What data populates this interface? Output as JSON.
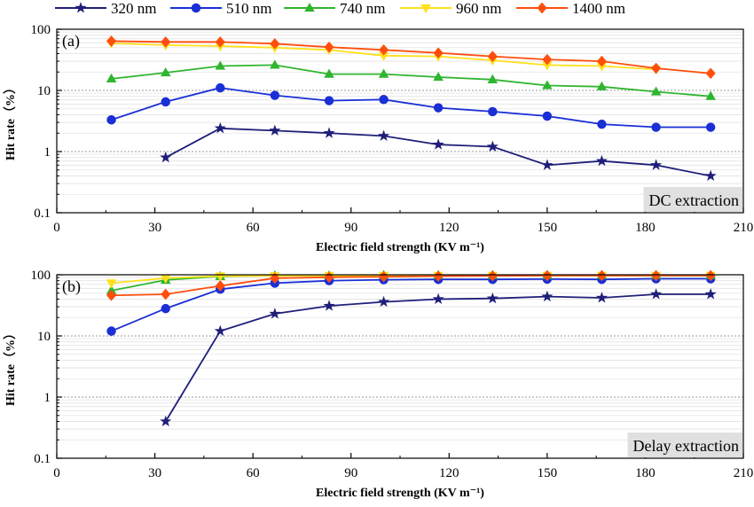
{
  "legend": [
    {
      "label": "320 nm",
      "color": "#1f1f7a",
      "marker": "star"
    },
    {
      "label": "510 nm",
      "color": "#1a2fd6",
      "marker": "circle"
    },
    {
      "label": "740 nm",
      "color": "#2fb52f",
      "marker": "triangle"
    },
    {
      "label": "960 nm",
      "color": "#ffe01a",
      "marker": "triangle-down"
    },
    {
      "label": "1400 nm",
      "color": "#ff4e0d",
      "marker": "diamond"
    }
  ],
  "chart_data": [
    {
      "type": "line",
      "panel_label": "(a)",
      "corner_label": "DC extraction",
      "xlabel": "Electric field strength (KV m⁻¹)",
      "ylabel": "Hit rate（%）",
      "xlim": [
        0,
        210
      ],
      "ylim": [
        0.1,
        100
      ],
      "yscale": "log",
      "x_ticks": [
        0,
        30,
        60,
        90,
        120,
        150,
        180,
        210
      ],
      "y_ticks": [
        {
          "value": 0.1,
          "label": "0.1"
        },
        {
          "value": 1,
          "label": "1"
        },
        {
          "value": 10,
          "label": "10"
        },
        {
          "value": 100,
          "label": "100"
        }
      ],
      "grid": true,
      "x": [
        16.7,
        33.3,
        50,
        66.7,
        83.3,
        100,
        116.7,
        133.3,
        150,
        166.7,
        183.3,
        200
      ],
      "series": [
        {
          "name": "320 nm",
          "values": [
            null,
            0.8,
            2.4,
            2.2,
            2.0,
            1.8,
            1.3,
            1.2,
            0.6,
            0.7,
            0.6,
            0.4
          ]
        },
        {
          "name": "510 nm",
          "values": [
            3.3,
            6.5,
            11,
            8.3,
            6.8,
            7.1,
            5.2,
            4.5,
            3.8,
            2.8,
            2.5,
            2.5
          ]
        },
        {
          "name": "740 nm",
          "values": [
            15.5,
            19.5,
            25,
            26,
            18.5,
            18.5,
            16.5,
            15,
            12,
            11.5,
            9.5,
            8
          ]
        },
        {
          "name": "960 nm",
          "values": [
            59,
            55,
            53,
            50,
            46,
            37,
            36,
            31,
            26,
            25,
            22,
            null
          ]
        },
        {
          "name": "1400 nm",
          "values": [
            64,
            62,
            62,
            58,
            51,
            46,
            41,
            36,
            32,
            30,
            23,
            19
          ]
        }
      ]
    },
    {
      "type": "line",
      "panel_label": "(b)",
      "corner_label": "Delay extraction",
      "xlabel": "Electric field strength (KV m⁻¹)",
      "ylabel": "Hit rate（%）",
      "xlim": [
        0,
        210
      ],
      "ylim": [
        0.1,
        100
      ],
      "yscale": "log",
      "x_ticks": [
        0,
        30,
        60,
        90,
        120,
        150,
        180,
        210
      ],
      "y_ticks": [
        {
          "value": 0.1,
          "label": "0.1"
        },
        {
          "value": 1,
          "label": "1"
        },
        {
          "value": 10,
          "label": "10"
        },
        {
          "value": 100,
          "label": "100"
        }
      ],
      "grid": true,
      "x": [
        16.7,
        33.3,
        50,
        66.7,
        83.3,
        100,
        116.7,
        133.3,
        150,
        166.7,
        183.3,
        200
      ],
      "series": [
        {
          "name": "320 nm",
          "values": [
            null,
            0.4,
            12,
            23,
            31,
            36,
            40,
            41,
            44,
            42,
            48,
            48
          ]
        },
        {
          "name": "510 nm",
          "values": [
            12,
            28,
            58,
            73,
            80,
            83,
            84,
            84,
            85,
            84,
            86,
            86
          ]
        },
        {
          "name": "740 nm",
          "values": [
            55,
            82,
            94,
            97,
            97,
            98,
            98,
            98,
            98,
            98,
            98,
            98
          ]
        },
        {
          "name": "960 nm",
          "values": [
            73,
            88,
            95,
            96,
            97,
            97,
            97,
            97,
            97,
            97,
            97,
            97
          ]
        },
        {
          "name": "1400 nm",
          "values": [
            46,
            48,
            66,
            88,
            91,
            93,
            95,
            96,
            97,
            97,
            97,
            97
          ]
        }
      ]
    }
  ]
}
